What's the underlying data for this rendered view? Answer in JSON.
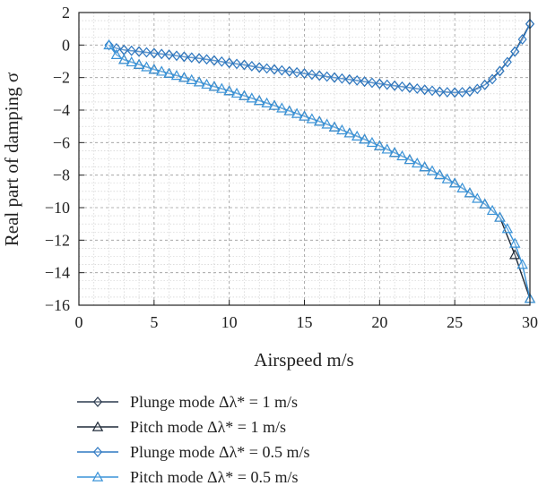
{
  "chart_data": {
    "type": "line",
    "xlabel": "Airspeed m/s",
    "ylabel": "Real part of damping σ",
    "xlim": [
      0,
      30
    ],
    "ylim": [
      -16,
      2
    ],
    "xticks": [
      0,
      5,
      10,
      15,
      20,
      25,
      30
    ],
    "yticks": [
      2,
      0,
      -2,
      -4,
      -6,
      -8,
      -10,
      -12,
      -14,
      -16
    ],
    "grid": true,
    "legend_position": "below",
    "series": [
      {
        "name": "Plunge mode Δλ* = 1 m/s",
        "color": "#2b3a4e",
        "marker": "diamond",
        "x": [
          3,
          4,
          5,
          6,
          7,
          8,
          9,
          10,
          11,
          12,
          13,
          14,
          15,
          16,
          17,
          18,
          19,
          20,
          21,
          22,
          23,
          24,
          25,
          26,
          27,
          28,
          29,
          30
        ],
        "y": [
          -0.3,
          -0.4,
          -0.5,
          -0.6,
          -0.72,
          -0.82,
          -0.95,
          -1.1,
          -1.22,
          -1.38,
          -1.5,
          -1.62,
          -1.75,
          -1.88,
          -2.0,
          -2.12,
          -2.25,
          -2.38,
          -2.5,
          -2.62,
          -2.75,
          -2.87,
          -2.92,
          -2.85,
          -2.45,
          -1.6,
          -0.4,
          1.3
        ]
      },
      {
        "name": "Pitch mode Δλ* = 1 m/s",
        "color": "#1f2a38",
        "marker": "triangle",
        "x": [
          3,
          4,
          5,
          6,
          7,
          8,
          9,
          10,
          11,
          12,
          13,
          14,
          15,
          16,
          17,
          18,
          19,
          20,
          21,
          22,
          23,
          24,
          25,
          26,
          27,
          28,
          29,
          30
        ],
        "y": [
          -0.9,
          -1.2,
          -1.5,
          -1.75,
          -2.0,
          -2.28,
          -2.55,
          -2.82,
          -3.12,
          -3.42,
          -3.72,
          -4.05,
          -4.38,
          -4.7,
          -5.05,
          -5.42,
          -5.8,
          -6.2,
          -6.62,
          -7.05,
          -7.5,
          -7.98,
          -8.5,
          -9.1,
          -9.78,
          -10.6,
          -12.9,
          -15.6
        ]
      },
      {
        "name": "Plunge mode Δλ* = 0.5 m/s",
        "color": "#2f79c2",
        "marker": "diamond",
        "x": [
          2,
          2.5,
          3,
          3.5,
          4,
          4.5,
          5,
          5.5,
          6,
          6.5,
          7,
          7.5,
          8,
          8.5,
          9,
          9.5,
          10,
          10.5,
          11,
          11.5,
          12,
          12.5,
          13,
          13.5,
          14,
          14.5,
          15,
          15.5,
          16,
          16.5,
          17,
          17.5,
          18,
          18.5,
          19,
          19.5,
          20,
          20.5,
          21,
          21.5,
          22,
          22.5,
          23,
          23.5,
          24,
          24.5,
          25,
          25.5,
          26,
          26.5,
          27,
          27.5,
          28,
          28.5,
          29,
          29.5,
          30
        ],
        "y": [
          0.0,
          -0.2,
          -0.3,
          -0.35,
          -0.4,
          -0.45,
          -0.5,
          -0.55,
          -0.6,
          -0.66,
          -0.72,
          -0.77,
          -0.82,
          -0.88,
          -0.95,
          -1.02,
          -1.1,
          -1.16,
          -1.22,
          -1.3,
          -1.38,
          -1.44,
          -1.5,
          -1.56,
          -1.62,
          -1.68,
          -1.75,
          -1.82,
          -1.88,
          -1.94,
          -2.0,
          -2.06,
          -2.12,
          -2.18,
          -2.25,
          -2.32,
          -2.38,
          -2.44,
          -2.5,
          -2.56,
          -2.62,
          -2.68,
          -2.75,
          -2.81,
          -2.87,
          -2.9,
          -2.92,
          -2.9,
          -2.85,
          -2.7,
          -2.45,
          -2.1,
          -1.6,
          -1.05,
          -0.4,
          0.35,
          1.3
        ]
      },
      {
        "name": "Pitch mode Δλ* = 0.5 m/s",
        "color": "#3a93d8",
        "marker": "triangle",
        "x": [
          2,
          2.5,
          3,
          3.5,
          4,
          4.5,
          5,
          5.5,
          6,
          6.5,
          7,
          7.5,
          8,
          8.5,
          9,
          9.5,
          10,
          10.5,
          11,
          11.5,
          12,
          12.5,
          13,
          13.5,
          14,
          14.5,
          15,
          15.5,
          16,
          16.5,
          17,
          17.5,
          18,
          18.5,
          19,
          19.5,
          20,
          20.5,
          21,
          21.5,
          22,
          22.5,
          23,
          23.5,
          24,
          24.5,
          25,
          25.5,
          26,
          26.5,
          27,
          27.5,
          28,
          28.5,
          29,
          29.5,
          30
        ],
        "y": [
          0.0,
          -0.6,
          -0.9,
          -1.05,
          -1.2,
          -1.35,
          -1.5,
          -1.62,
          -1.75,
          -1.88,
          -2.0,
          -2.14,
          -2.28,
          -2.42,
          -2.55,
          -2.68,
          -2.82,
          -2.97,
          -3.12,
          -3.27,
          -3.42,
          -3.57,
          -3.72,
          -3.88,
          -4.05,
          -4.22,
          -4.38,
          -4.54,
          -4.7,
          -4.87,
          -5.05,
          -5.23,
          -5.42,
          -5.61,
          -5.8,
          -6.0,
          -6.2,
          -6.41,
          -6.62,
          -6.83,
          -7.05,
          -7.27,
          -7.5,
          -7.74,
          -7.98,
          -8.24,
          -8.5,
          -8.8,
          -9.1,
          -9.44,
          -9.78,
          -10.18,
          -10.6,
          -11.3,
          -12.2,
          -13.5,
          -15.6
        ]
      }
    ]
  }
}
